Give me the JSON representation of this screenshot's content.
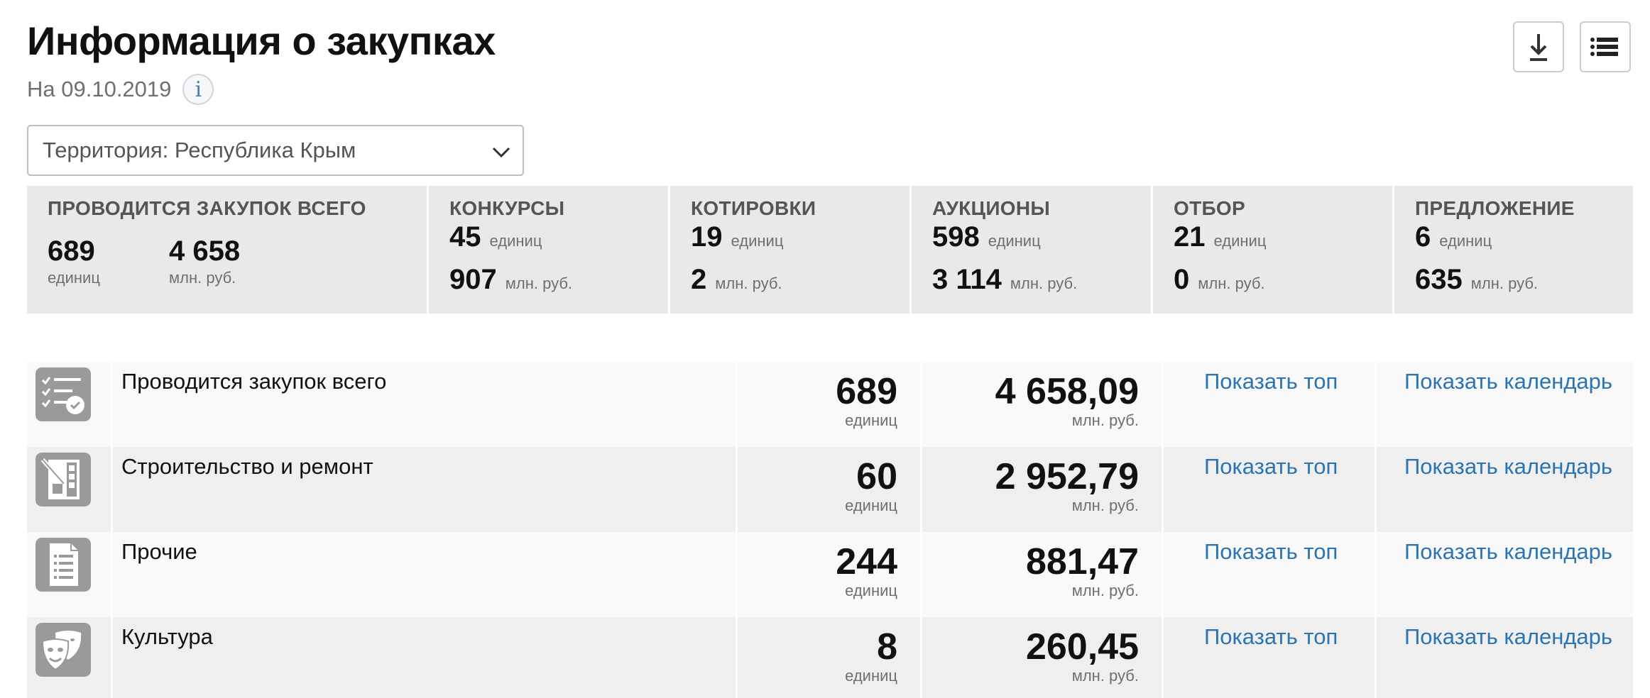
{
  "header": {
    "title": "Информация о закупках",
    "date_label": "На 09.10.2019",
    "info_icon": "i",
    "tools": [
      {
        "name": "download-icon"
      },
      {
        "name": "list-icon"
      }
    ]
  },
  "filter": {
    "territory_value": "Территория: Республика Крым"
  },
  "summary": {
    "total": {
      "heading": "ПРОВОДИТСЯ ЗАКУПОК ВСЕГО",
      "count": "689",
      "count_unit": "единиц",
      "amount": "4 658",
      "amount_unit": "млн. руб."
    },
    "types": [
      {
        "heading": "КОНКУРСЫ",
        "count": "45",
        "count_unit": "единиц",
        "amount": "907",
        "amount_unit": "млн. руб."
      },
      {
        "heading": "КОТИРОВКИ",
        "count": "19",
        "count_unit": "единиц",
        "amount": "2",
        "amount_unit": "млн. руб."
      },
      {
        "heading": "АУКЦИОНЫ",
        "count": "598",
        "count_unit": "единиц",
        "amount": "3 114",
        "amount_unit": "млн. руб."
      },
      {
        "heading": "ОТБОР",
        "count": "21",
        "count_unit": "единиц",
        "amount": "0",
        "amount_unit": "млн. руб."
      },
      {
        "heading": "ПРЕДЛОЖЕНИЕ",
        "count": "6",
        "count_unit": "единиц",
        "amount": "635",
        "amount_unit": "млн. руб."
      }
    ]
  },
  "categories": [
    {
      "icon": "checklist-icon",
      "name": "Проводится закупок всего",
      "count": "689",
      "count_unit": "единиц",
      "amount": "4 658,09",
      "amount_unit": "млн. руб.",
      "top_link": "Показать топ",
      "calendar_link": "Показать календарь"
    },
    {
      "icon": "construction-icon",
      "name": "Строительство и ремонт",
      "count": "60",
      "count_unit": "единиц",
      "amount": "2 952,79",
      "amount_unit": "млн. руб.",
      "top_link": "Показать топ",
      "calendar_link": "Показать календарь"
    },
    {
      "icon": "document-list-icon",
      "name": "Прочие",
      "count": "244",
      "count_unit": "единиц",
      "amount": "881,47",
      "amount_unit": "млн. руб.",
      "top_link": "Показать топ",
      "calendar_link": "Показать календарь"
    },
    {
      "icon": "theater-masks-icon",
      "name": "Культура",
      "count": "8",
      "count_unit": "единиц",
      "amount": "260,45",
      "amount_unit": "млн. руб.",
      "top_link": "Показать топ",
      "calendar_link": "Показать календарь"
    }
  ],
  "colors": {
    "link": "#2a74b3",
    "summary_bg": "#e9e9e9",
    "icon_bg": "#9a9a9a"
  }
}
